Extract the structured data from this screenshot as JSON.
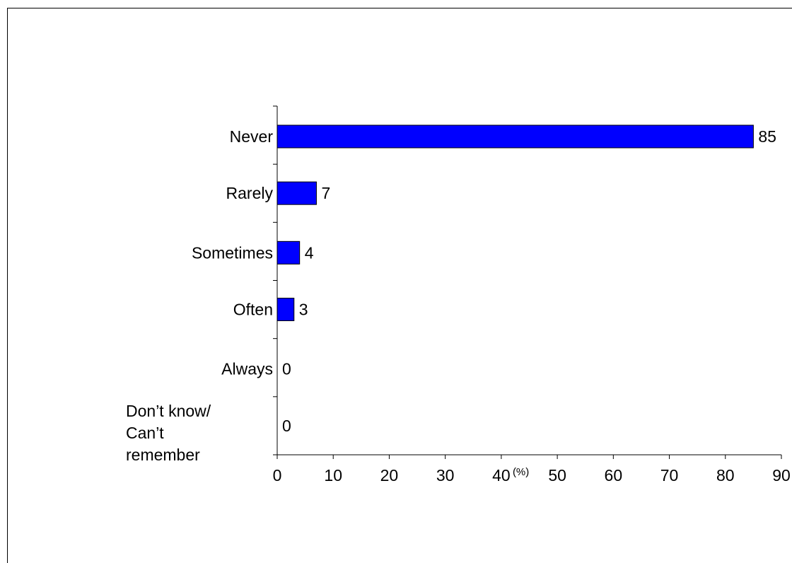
{
  "chart_data": {
    "type": "bar",
    "orientation": "horizontal",
    "categories": [
      [
        "Never"
      ],
      [
        "Rarely"
      ],
      [
        "Sometimes"
      ],
      [
        "Often"
      ],
      [
        "Always"
      ],
      [
        "Don’t know/",
        "Can’t",
        "remember"
      ]
    ],
    "values": [
      85,
      7,
      4,
      3,
      0,
      0
    ],
    "value_labels": [
      "85",
      "7",
      "4",
      "3",
      "0",
      "0"
    ],
    "xlim": [
      0,
      90
    ],
    "xticks": [
      "0",
      "10",
      "20",
      "30",
      "40",
      "50",
      "60",
      "70",
      "80",
      "90"
    ],
    "unit_label": "(%)",
    "bar_color": "#0000ff",
    "title": "",
    "xlabel": "",
    "ylabel": "",
    "grid": false,
    "legend": "none"
  }
}
